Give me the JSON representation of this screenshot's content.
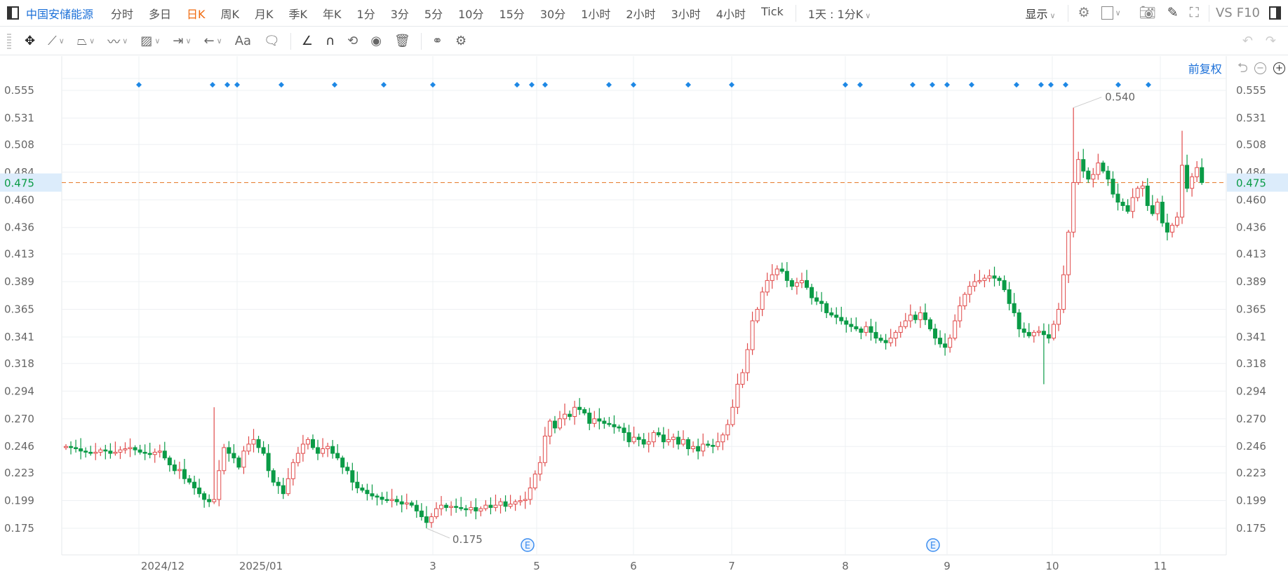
{
  "header": {
    "stock_name": "中国安储能源",
    "periods": [
      "分时",
      "多日",
      "日K",
      "周K",
      "月K",
      "季K",
      "年K",
      "1分",
      "3分",
      "5分",
      "10分",
      "15分",
      "30分",
      "1小时",
      "2小时",
      "3小时",
      "4小时",
      "Tick"
    ],
    "active_period": "日K",
    "custom_period": "1天 : 1分K",
    "display_label": "显示",
    "vs_label": "VS",
    "f10_label": "F10"
  },
  "toolbar": {
    "tools": [
      "move-icon",
      "line-icon",
      "polyline-icon",
      "wave-icon",
      "rect-icon",
      "measure-icon",
      "arrow-icon",
      "text-icon",
      "comment-icon",
      "angle-icon",
      "magnet-icon",
      "sync-icon",
      "eye-icon",
      "trash-icon",
      "link-icon",
      "gear-icon"
    ],
    "text_tool_label": "Aa"
  },
  "adjust": {
    "label": "前复权"
  },
  "colors": {
    "up": "#e04b4b",
    "down": "#0a9b46",
    "price_line": "#e8843a",
    "accent": "#1a6fd8",
    "marker": "#1e88e5"
  },
  "chart_data": {
    "type": "candlestick",
    "y_ticks": [
      "0.555",
      "0.531",
      "0.508",
      "0.484",
      "0.460",
      "0.436",
      "0.413",
      "0.389",
      "0.365",
      "0.341",
      "0.318",
      "0.294",
      "0.270",
      "0.246",
      "0.223",
      "0.199",
      "0.175"
    ],
    "ylim": [
      0.175,
      0.555
    ],
    "x_ticks": [
      "2024/12",
      "2025/01",
      "3",
      "5",
      "6",
      "7",
      "8",
      "9",
      "10",
      "11"
    ],
    "current_price": "0.475",
    "max_label": "0.540",
    "min_label": "0.175",
    "event_marker_label": "E",
    "grid": true,
    "first_open": 0.245,
    "closes": [
      0.246,
      0.245,
      0.244,
      0.242,
      0.241,
      0.24,
      0.241,
      0.243,
      0.242,
      0.24,
      0.241,
      0.243,
      0.244,
      0.245,
      0.243,
      0.241,
      0.24,
      0.239,
      0.241,
      0.242,
      0.236,
      0.23,
      0.225,
      0.226,
      0.218,
      0.215,
      0.21,
      0.205,
      0.2,
      0.198,
      0.2,
      0.225,
      0.245,
      0.24,
      0.236,
      0.228,
      0.242,
      0.248,
      0.252,
      0.245,
      0.24,
      0.225,
      0.215,
      0.212,
      0.205,
      0.218,
      0.232,
      0.24,
      0.248,
      0.252,
      0.245,
      0.24,
      0.244,
      0.246,
      0.24,
      0.236,
      0.228,
      0.225,
      0.215,
      0.21,
      0.208,
      0.205,
      0.203,
      0.202,
      0.2,
      0.199,
      0.2,
      0.198,
      0.196,
      0.197,
      0.195,
      0.19,
      0.185,
      0.18,
      0.185,
      0.192,
      0.195,
      0.193,
      0.194,
      0.193,
      0.192,
      0.191,
      0.193,
      0.19,
      0.192,
      0.195,
      0.193,
      0.195,
      0.198,
      0.194,
      0.196,
      0.198,
      0.199,
      0.2,
      0.21,
      0.222,
      0.232,
      0.255,
      0.268,
      0.262,
      0.27,
      0.274,
      0.272,
      0.28,
      0.278,
      0.275,
      0.266,
      0.27,
      0.268,
      0.266,
      0.265,
      0.263,
      0.262,
      0.258,
      0.25,
      0.254,
      0.252,
      0.248,
      0.25,
      0.258,
      0.256,
      0.25,
      0.252,
      0.254,
      0.248,
      0.252,
      0.244,
      0.246,
      0.242,
      0.248,
      0.247,
      0.246,
      0.25,
      0.256,
      0.265,
      0.28,
      0.3,
      0.31,
      0.33,
      0.355,
      0.365,
      0.38,
      0.39,
      0.395,
      0.4,
      0.398,
      0.39,
      0.385,
      0.388,
      0.39,
      0.384,
      0.375,
      0.372,
      0.37,
      0.362,
      0.36,
      0.358,
      0.355,
      0.352,
      0.35,
      0.348,
      0.345,
      0.35,
      0.345,
      0.34,
      0.338,
      0.336,
      0.34,
      0.345,
      0.35,
      0.355,
      0.36,
      0.356,
      0.362,
      0.356,
      0.348,
      0.34,
      0.335,
      0.332,
      0.34,
      0.355,
      0.368,
      0.378,
      0.385,
      0.389,
      0.39,
      0.392,
      0.394,
      0.392,
      0.39,
      0.382,
      0.37,
      0.362,
      0.348,
      0.345,
      0.342,
      0.345,
      0.346,
      0.343,
      0.34,
      0.352,
      0.365,
      0.395,
      0.432,
      0.475,
      0.495,
      0.485,
      0.478,
      0.482,
      0.492,
      0.485,
      0.478,
      0.465,
      0.458,
      0.455,
      0.45,
      0.462,
      0.47,
      0.472,
      0.455,
      0.448,
      0.458,
      0.44,
      0.432,
      0.438,
      0.445,
      0.49,
      0.47,
      0.48,
      0.488,
      0.475
    ],
    "notable_highs": [
      {
        "i": 30,
        "v": 0.28
      },
      {
        "i": 204,
        "v": 0.54
      },
      {
        "i": 226,
        "v": 0.52
      }
    ],
    "notable_lows": [
      {
        "i": 73,
        "v": 0.175
      },
      {
        "i": 198,
        "v": 0.3
      }
    ]
  }
}
